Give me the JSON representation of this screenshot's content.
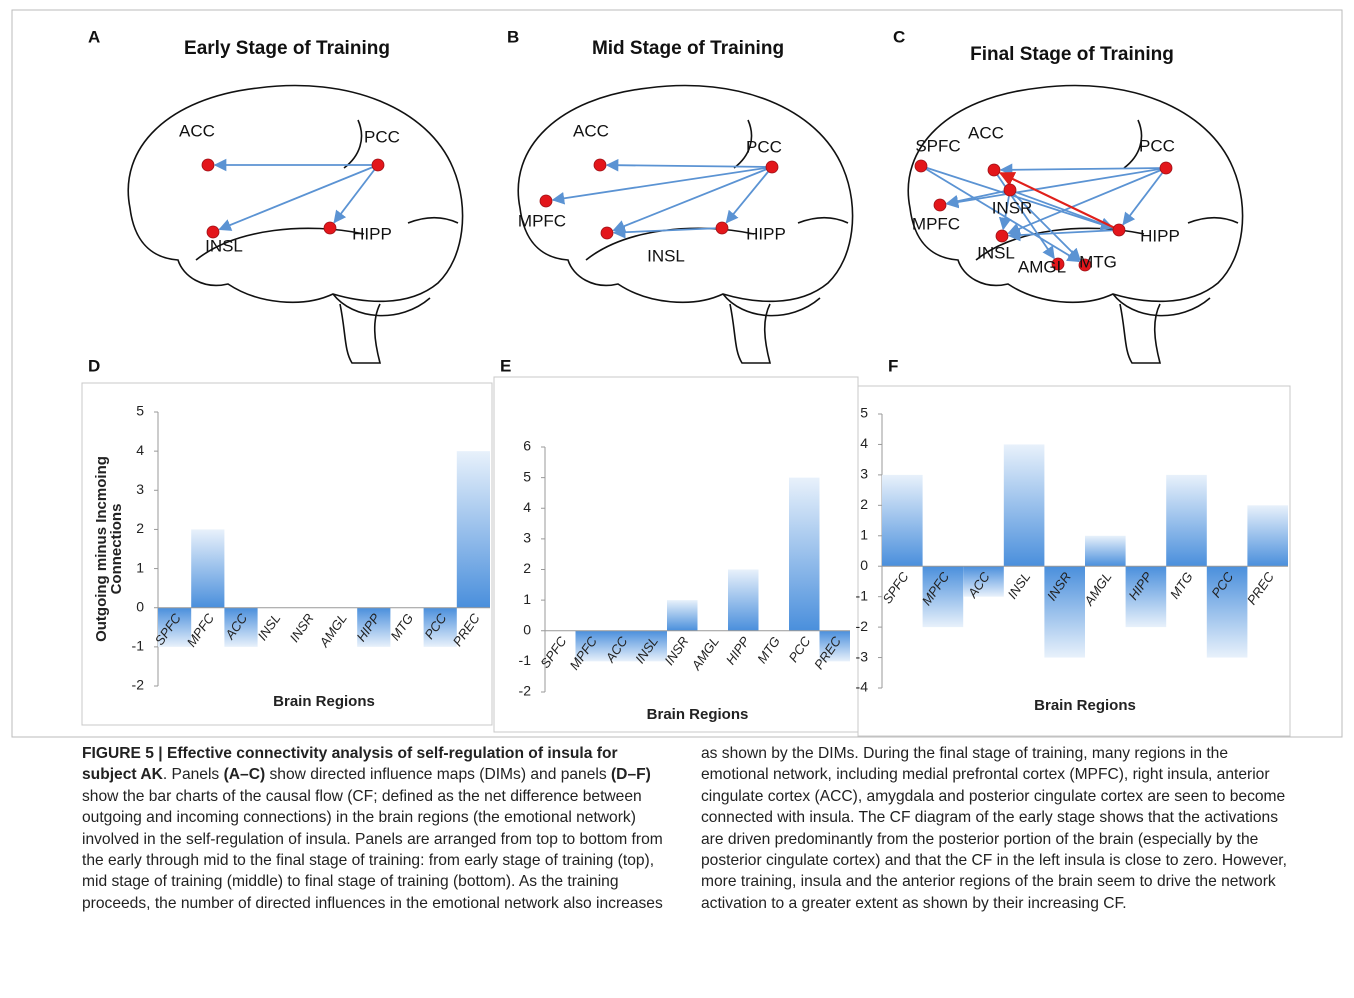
{
  "panels": [
    {
      "label": "A",
      "title": "Early Stage of Training",
      "nodes": [
        "ACC",
        "PCC",
        "INSL",
        "HIPP"
      ]
    },
    {
      "label": "B",
      "title": "Mid Stage of Training",
      "nodes": [
        "ACC",
        "PCC",
        "MPFC",
        "INSL",
        "HIPP"
      ]
    },
    {
      "label": "C",
      "title": "Final Stage of Training",
      "nodes": [
        "SPFC",
        "ACC",
        "PCC",
        "INSR",
        "MPFC",
        "INSL",
        "HIPP",
        "AMGL",
        "MTG"
      ]
    }
  ],
  "chart_data": [
    {
      "type": "bar",
      "label": "D",
      "categories": [
        "SPFC",
        "MPFC",
        "ACC",
        "INSL",
        "INSR",
        "AMGL",
        "HIPP",
        "MTG",
        "PCC",
        "PREC"
      ],
      "values": [
        -1,
        2,
        -1,
        0,
        0,
        0,
        -1,
        0,
        -1,
        4
      ],
      "color": "#4a8fdc",
      "ylim": [
        -2,
        5
      ],
      "yticks": [
        -2,
        -1,
        0,
        1,
        2,
        3,
        4,
        5
      ],
      "y_label": [
        "Outgoing minus Incmoing",
        "Connections"
      ],
      "x_label": "Brain Regions"
    },
    {
      "type": "bar",
      "label": "E",
      "categories": [
        "SPFC",
        "MPFC",
        "ACC",
        "INSL",
        "INSR",
        "AMGL",
        "HIPP",
        "MTG",
        "PCC",
        "PREC"
      ],
      "values": [
        0,
        -1,
        -1,
        -1,
        1,
        0,
        2,
        0,
        5,
        -1
      ],
      "color": "#4a8fdc",
      "ylim": [
        -2,
        6
      ],
      "yticks": [
        -2,
        -1,
        0,
        1,
        2,
        3,
        4,
        5,
        6
      ],
      "x_label": "Brain Regions"
    },
    {
      "type": "bar",
      "label": "F",
      "categories": [
        "SPFC",
        "MPFC",
        "ACC",
        "INSL",
        "INSR",
        "AMGL",
        "HIPP",
        "MTG",
        "PCC",
        "PREC"
      ],
      "values": [
        3,
        -2,
        -1,
        4,
        -3,
        1,
        -2,
        3,
        -3,
        2
      ],
      "color": "#4a8fdc",
      "ylim": [
        -4,
        5
      ],
      "yticks": [
        -4,
        -3,
        -2,
        -1,
        0,
        1,
        2,
        3,
        4,
        5
      ],
      "x_label": "Brain Regions"
    }
  ],
  "caption": [
    {
      "text": "FIGURE 5 | Effective connectivity analysis of self-regulation of insula for subject AK",
      "bold": true
    },
    {
      "text": ". Panels ",
      "bold": false
    },
    {
      "text": "(A–C)",
      "bold": true
    },
    {
      "text": " show directed influence maps (DIMs) and panels ",
      "bold": false
    },
    {
      "text": "(D–F)",
      "bold": true
    },
    {
      "text": " show the bar charts of the causal flow (CF; defined as the net difference between outgoing and incoming connections) in the brain regions (the emotional network) involved in the self-regulation of insula. Panels are arranged from top to bottom from the early through mid to the final stage of training: from early stage of training (top), mid stage of training (middle) to final stage of training (bottom). As the training proceeds, the number of directed influences in the emotional network also increases as shown by the DIMs. During the final stage of training, many regions in the emotional network, including medial prefrontal cortex (MPFC), right insula, anterior cingulate cortex (ACC), amygdala and posterior cingulate cortex are seen to become connected with insula. The CF diagram of the early stage shows that the activations are driven predominantly from the posterior portion of the brain (especially by the posterior cingulate cortex) and that the CF in the left insula is close to zero. However, more training, insula and the anterior regions of the brain seem to drive the network activation to a greater extent as shown by their increasing CF.",
      "bold": false
    }
  ]
}
